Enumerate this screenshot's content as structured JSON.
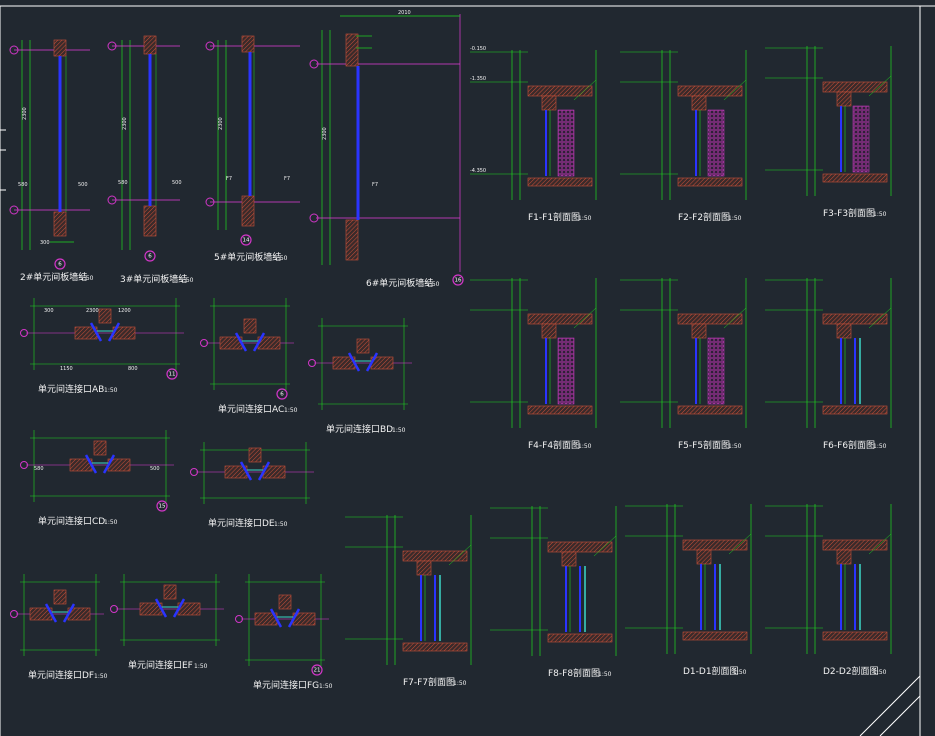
{
  "colors": {
    "background": "#212830",
    "dimension": "#1fd81f",
    "section_line": "#e23cd8",
    "glass": "#2a34ff",
    "concrete_hatch": "#c8503a",
    "insulation": "#d23cc8",
    "bubble": "#d236c8",
    "text": "#f2f2f2"
  },
  "window_details": [
    {
      "title": "2#单元间板墙结",
      "scale": "1:50",
      "bubble": "6"
    },
    {
      "title": "3#单元间板墙结",
      "scale": "1:50",
      "bubble": "6"
    },
    {
      "title": "5#单元间板墙结",
      "scale": "1:50",
      "bubble": "14"
    },
    {
      "title": "6#单元间板墙结",
      "scale": "1:50",
      "bubble": "16"
    }
  ],
  "sections": [
    {
      "title": "F1-F1剖面图",
      "scale": "1:50"
    },
    {
      "title": "F2-F2剖面图",
      "scale": "1:50"
    },
    {
      "title": "F3-F3剖面图",
      "scale": "1:50"
    },
    {
      "title": "F4-F4剖面图",
      "scale": "1:50"
    },
    {
      "title": "F5-F5剖面图",
      "scale": "1:50"
    },
    {
      "title": "F6-F6剖面图",
      "scale": "1:50"
    },
    {
      "title": "F7-F7剖面图",
      "scale": "1:50"
    },
    {
      "title": "F8-F8剖面图",
      "scale": "1:50"
    },
    {
      "title": "D1-D1剖面图",
      "scale": "1:50"
    },
    {
      "title": "D2-D2剖面图",
      "scale": "1:50"
    }
  ],
  "plans": [
    {
      "title": "单元间连接口AB",
      "scale": "1:50",
      "bubble": "11"
    },
    {
      "title": "单元间连接口AC",
      "scale": "1:50",
      "bubble": "6"
    },
    {
      "title": "单元间连接口BD",
      "scale": "1:50"
    },
    {
      "title": "单元间连接口CD",
      "scale": "1:50",
      "bubble": "15"
    },
    {
      "title": "单元间连接口DE",
      "scale": "1:50"
    },
    {
      "title": "单元间连接口DF",
      "scale": "1:50"
    },
    {
      "title": "单元间连接口EF",
      "scale": "1:50"
    },
    {
      "title": "单元间连接口FG",
      "scale": "1:50",
      "bubble": "21"
    }
  ],
  "level_labels": [
    "-0.150",
    "-1.350",
    "-4.350"
  ],
  "dim_labels": [
    "300",
    "2300",
    "1200",
    "1150",
    "800",
    "580",
    "500"
  ]
}
